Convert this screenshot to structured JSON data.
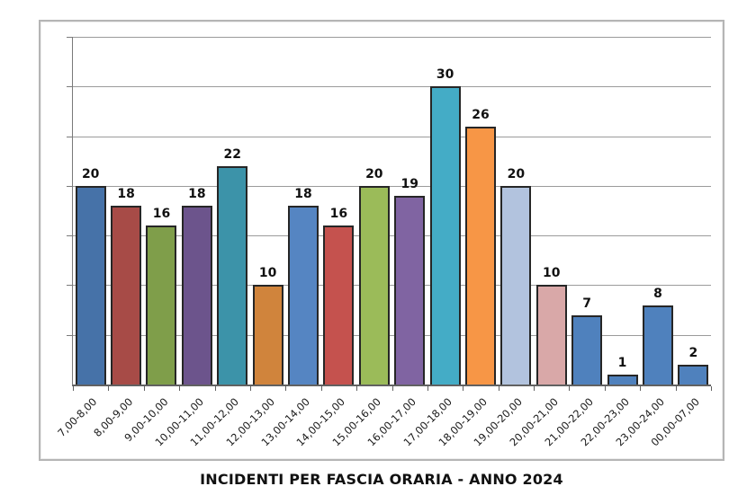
{
  "title": "INCIDENTI PER FASCIA ORARIA - ANNO 2024",
  "chart_data": {
    "type": "bar",
    "title": "INCIDENTI PER FASCIA ORARIA - ANNO 2024",
    "categories": [
      "7,00-8,00",
      "8,00-9,00",
      "9,00-10,00",
      "10,00-11,00",
      "11,00-12,00",
      "12,00-13,00",
      "13,00-14,00",
      "14,00-15,00",
      "15,00-16,00",
      "16,00-17,00",
      "17,00-18,00",
      "18,00-19,00",
      "19,00-20,00",
      "20,00-21,00",
      "21,00-22,00",
      "22,00-23,00",
      "23,00-24,00",
      "00,00-07,00"
    ],
    "values": [
      20,
      18,
      16,
      18,
      22,
      10,
      18,
      16,
      20,
      19,
      30,
      26,
      20,
      10,
      7,
      1,
      8,
      2
    ],
    "bar_colors": [
      "#4672A8",
      "#A74B47",
      "#7F9E4A",
      "#6C548C",
      "#3C93A9",
      "#D0843C",
      "#5585C2",
      "#C5524E",
      "#9BBB59",
      "#8064A2",
      "#44ACC6",
      "#F79646",
      "#B2C3DE",
      "#D9A8A8",
      "#4F81BD",
      "#4F81BD",
      "#4F81BD",
      "#4F81BD"
    ],
    "xlabel": "",
    "ylabel": "",
    "ylim": [
      0,
      35
    ],
    "gridline_interval": 5,
    "grid": "horizontal gridlines on",
    "y_axis_tick_labels_visible": false,
    "data_labels": "value above each bar, bold",
    "x_label_rotation_deg": 45,
    "legend": "none"
  },
  "colors": {
    "background": "#ffffff",
    "frame_border": "#b5b5b5",
    "gridline": "#9b9b9b",
    "axis": "#616161",
    "bar_border": "#262626",
    "label_text": "#111111"
  }
}
